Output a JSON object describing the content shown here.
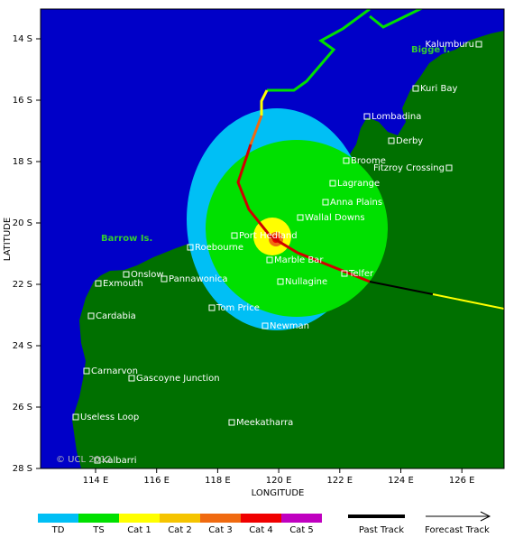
{
  "axes": {
    "x_label": "LONGITUDE",
    "y_label": "LATITUDE",
    "x_ticks": [
      "114 E",
      "116 E",
      "118 E",
      "120 E",
      "122 E",
      "124 E",
      "126 E"
    ],
    "y_ticks": [
      "14 S",
      "16 S",
      "18 S",
      "20 S",
      "22 S",
      "24 S",
      "26 S",
      "28 S"
    ]
  },
  "places": [
    "Kalumburu",
    "Kuri Bay",
    "Lombadina",
    "Derby",
    "Broome",
    "Fitzroy Crossing",
    "Lagrange",
    "Anna Plains",
    "Wallal Downs",
    "Port Hedland",
    "Roebourne",
    "Marble Bar",
    "Telfer",
    "Onslow",
    "Pannawonica",
    "Exmouth",
    "Nullagine",
    "Cardabia",
    "Tom Price",
    "Newman",
    "Carnarvon",
    "Gascoyne Junction",
    "Useless Loop",
    "Meekatharra",
    "Kalbarri"
  ],
  "islands": [
    "Bigge I.",
    "Barrow Is."
  ],
  "copyright": "© UCL 2012",
  "legend": {
    "intensity": [
      {
        "label": "TD",
        "color": "#00bff5"
      },
      {
        "label": "TS",
        "color": "#00e000"
      },
      {
        "label": "Cat 1",
        "color": "#ffff00"
      },
      {
        "label": "Cat 2",
        "color": "#f5c400"
      },
      {
        "label": "Cat 3",
        "color": "#f06a10"
      },
      {
        "label": "Cat 4",
        "color": "#f00000"
      },
      {
        "label": "Cat 5",
        "color": "#c000c0"
      }
    ],
    "past": "Past Track",
    "forecast": "Forecast Track"
  }
}
